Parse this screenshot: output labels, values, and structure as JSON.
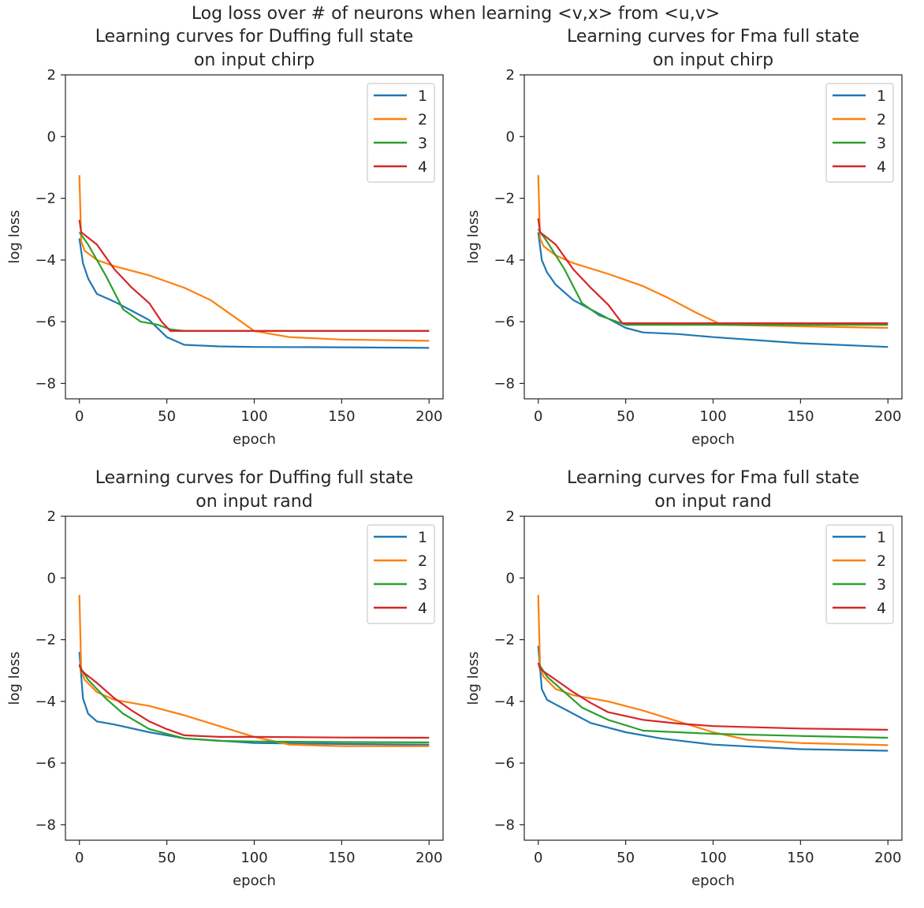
{
  "figure_title": "Log loss over # of neurons when learning <v,x> from <u,v>",
  "colors": {
    "1": "#1f77b4",
    "2": "#ff7f0e",
    "3": "#2ca02c",
    "4": "#d62728"
  },
  "chart_data": [
    {
      "type": "line",
      "title": "Learning curves for Duffing full state\non input chirp",
      "xlabel": "epoch",
      "ylabel": "log loss",
      "xlim": [
        -8,
        208
      ],
      "ylim": [
        -8.5,
        2
      ],
      "xticks": [
        0,
        50,
        100,
        150,
        200
      ],
      "yticks": [
        2,
        0,
        -2,
        -4,
        -6,
        -8
      ],
      "legend": "top-right",
      "grid": false,
      "series": [
        {
          "name": "1",
          "points": [
            [
              0,
              -3.3
            ],
            [
              2,
              -4.1
            ],
            [
              5,
              -4.6
            ],
            [
              10,
              -5.1
            ],
            [
              20,
              -5.35
            ],
            [
              30,
              -5.65
            ],
            [
              40,
              -5.95
            ],
            [
              50,
              -6.5
            ],
            [
              60,
              -6.75
            ],
            [
              80,
              -6.8
            ],
            [
              100,
              -6.82
            ],
            [
              150,
              -6.83
            ],
            [
              200,
              -6.85
            ]
          ]
        },
        {
          "name": "2",
          "points": [
            [
              0,
              -1.25
            ],
            [
              1,
              -3.4
            ],
            [
              3,
              -3.7
            ],
            [
              10,
              -4.0
            ],
            [
              20,
              -4.2
            ],
            [
              40,
              -4.5
            ],
            [
              60,
              -4.9
            ],
            [
              75,
              -5.3
            ],
            [
              90,
              -5.9
            ],
            [
              100,
              -6.3
            ],
            [
              120,
              -6.5
            ],
            [
              150,
              -6.58
            ],
            [
              200,
              -6.62
            ]
          ]
        },
        {
          "name": "3",
          "points": [
            [
              0,
              -3.1
            ],
            [
              5,
              -3.5
            ],
            [
              15,
              -4.5
            ],
            [
              25,
              -5.6
            ],
            [
              35,
              -6.0
            ],
            [
              45,
              -6.1
            ],
            [
              52,
              -6.25
            ],
            [
              60,
              -6.3
            ],
            [
              100,
              -6.3
            ],
            [
              150,
              -6.3
            ],
            [
              200,
              -6.3
            ]
          ]
        },
        {
          "name": "4",
          "points": [
            [
              0,
              -2.7
            ],
            [
              1,
              -3.1
            ],
            [
              10,
              -3.5
            ],
            [
              20,
              -4.3
            ],
            [
              30,
              -4.9
            ],
            [
              40,
              -5.4
            ],
            [
              47,
              -6.0
            ],
            [
              52,
              -6.3
            ],
            [
              60,
              -6.3
            ],
            [
              100,
              -6.3
            ],
            [
              150,
              -6.3
            ],
            [
              200,
              -6.3
            ]
          ]
        }
      ]
    },
    {
      "type": "line",
      "title": "Learning curves for Fma full state\non input chirp",
      "xlabel": "epoch",
      "ylabel": "log loss",
      "xlim": [
        -8,
        208
      ],
      "ylim": [
        -8.5,
        2
      ],
      "xticks": [
        0,
        50,
        100,
        150,
        200
      ],
      "yticks": [
        2,
        0,
        -2,
        -4,
        -6,
        -8
      ],
      "legend": "top-right",
      "grid": false,
      "series": [
        {
          "name": "1",
          "points": [
            [
              0,
              -3.1
            ],
            [
              2,
              -4.0
            ],
            [
              5,
              -4.4
            ],
            [
              10,
              -4.8
            ],
            [
              20,
              -5.3
            ],
            [
              30,
              -5.6
            ],
            [
              40,
              -5.9
            ],
            [
              50,
              -6.2
            ],
            [
              60,
              -6.35
            ],
            [
              80,
              -6.4
            ],
            [
              100,
              -6.5
            ],
            [
              150,
              -6.7
            ],
            [
              200,
              -6.82
            ]
          ]
        },
        {
          "name": "2",
          "points": [
            [
              0,
              -1.25
            ],
            [
              1,
              -3.3
            ],
            [
              3,
              -3.55
            ],
            [
              10,
              -3.85
            ],
            [
              20,
              -4.1
            ],
            [
              40,
              -4.45
            ],
            [
              60,
              -4.85
            ],
            [
              75,
              -5.25
            ],
            [
              90,
              -5.7
            ],
            [
              105,
              -6.1
            ],
            [
              150,
              -6.15
            ],
            [
              200,
              -6.2
            ]
          ]
        },
        {
          "name": "3",
          "points": [
            [
              0,
              -3.0
            ],
            [
              5,
              -3.4
            ],
            [
              15,
              -4.3
            ],
            [
              25,
              -5.4
            ],
            [
              35,
              -5.8
            ],
            [
              45,
              -6.0
            ],
            [
              50,
              -6.1
            ],
            [
              60,
              -6.1
            ],
            [
              100,
              -6.1
            ],
            [
              150,
              -6.1
            ],
            [
              200,
              -6.1
            ]
          ]
        },
        {
          "name": "4",
          "points": [
            [
              0,
              -2.65
            ],
            [
              1,
              -3.1
            ],
            [
              10,
              -3.5
            ],
            [
              20,
              -4.3
            ],
            [
              30,
              -4.9
            ],
            [
              40,
              -5.45
            ],
            [
              48,
              -6.05
            ],
            [
              60,
              -6.05
            ],
            [
              100,
              -6.05
            ],
            [
              150,
              -6.05
            ],
            [
              200,
              -6.05
            ]
          ]
        }
      ]
    },
    {
      "type": "line",
      "title": "Learning curves for Duffing full state\non input rand",
      "xlabel": "epoch",
      "ylabel": "log loss",
      "xlim": [
        -8,
        208
      ],
      "ylim": [
        -8.5,
        2
      ],
      "xticks": [
        0,
        50,
        100,
        150,
        200
      ],
      "yticks": [
        2,
        0,
        -2,
        -4,
        -6,
        -8
      ],
      "legend": "top-right",
      "grid": false,
      "series": [
        {
          "name": "1",
          "points": [
            [
              0,
              -2.4
            ],
            [
              2,
              -3.9
            ],
            [
              5,
              -4.4
            ],
            [
              10,
              -4.65
            ],
            [
              20,
              -4.75
            ],
            [
              40,
              -5.0
            ],
            [
              60,
              -5.2
            ],
            [
              100,
              -5.35
            ],
            [
              150,
              -5.38
            ],
            [
              200,
              -5.4
            ]
          ]
        },
        {
          "name": "2",
          "points": [
            [
              0,
              -0.55
            ],
            [
              1,
              -3.0
            ],
            [
              3,
              -3.3
            ],
            [
              10,
              -3.7
            ],
            [
              20,
              -3.95
            ],
            [
              40,
              -4.15
            ],
            [
              60,
              -4.45
            ],
            [
              80,
              -4.8
            ],
            [
              100,
              -5.15
            ],
            [
              120,
              -5.4
            ],
            [
              150,
              -5.45
            ],
            [
              200,
              -5.45
            ]
          ]
        },
        {
          "name": "3",
          "points": [
            [
              0,
              -2.85
            ],
            [
              5,
              -3.3
            ],
            [
              15,
              -3.9
            ],
            [
              25,
              -4.4
            ],
            [
              40,
              -4.9
            ],
            [
              60,
              -5.2
            ],
            [
              80,
              -5.28
            ],
            [
              100,
              -5.3
            ],
            [
              150,
              -5.32
            ],
            [
              200,
              -5.33
            ]
          ]
        },
        {
          "name": "4",
          "points": [
            [
              0,
              -2.8
            ],
            [
              1,
              -3.0
            ],
            [
              10,
              -3.4
            ],
            [
              20,
              -3.9
            ],
            [
              30,
              -4.3
            ],
            [
              40,
              -4.65
            ],
            [
              50,
              -4.9
            ],
            [
              60,
              -5.1
            ],
            [
              80,
              -5.15
            ],
            [
              100,
              -5.15
            ],
            [
              150,
              -5.17
            ],
            [
              200,
              -5.18
            ]
          ]
        }
      ]
    },
    {
      "type": "line",
      "title": "Learning curves for Fma full state\non input rand",
      "xlabel": "epoch",
      "ylabel": "log loss",
      "xlim": [
        -8,
        208
      ],
      "ylim": [
        -8.5,
        2
      ],
      "xticks": [
        0,
        50,
        100,
        150,
        200
      ],
      "yticks": [
        2,
        0,
        -2,
        -4,
        -6,
        -8
      ],
      "legend": "top-right",
      "grid": false,
      "series": [
        {
          "name": "1",
          "points": [
            [
              0,
              -2.2
            ],
            [
              2,
              -3.6
            ],
            [
              5,
              -3.95
            ],
            [
              10,
              -4.1
            ],
            [
              20,
              -4.4
            ],
            [
              30,
              -4.7
            ],
            [
              50,
              -5.0
            ],
            [
              70,
              -5.2
            ],
            [
              100,
              -5.4
            ],
            [
              150,
              -5.55
            ],
            [
              200,
              -5.6
            ]
          ]
        },
        {
          "name": "2",
          "points": [
            [
              0,
              -0.55
            ],
            [
              1,
              -2.9
            ],
            [
              3,
              -3.2
            ],
            [
              10,
              -3.6
            ],
            [
              20,
              -3.8
            ],
            [
              40,
              -4.0
            ],
            [
              60,
              -4.3
            ],
            [
              80,
              -4.65
            ],
            [
              100,
              -5.0
            ],
            [
              120,
              -5.25
            ],
            [
              150,
              -5.35
            ],
            [
              200,
              -5.42
            ]
          ]
        },
        {
          "name": "3",
          "points": [
            [
              0,
              -2.75
            ],
            [
              5,
              -3.2
            ],
            [
              15,
              -3.7
            ],
            [
              25,
              -4.2
            ],
            [
              40,
              -4.6
            ],
            [
              60,
              -4.95
            ],
            [
              80,
              -5.0
            ],
            [
              100,
              -5.05
            ],
            [
              150,
              -5.12
            ],
            [
              200,
              -5.18
            ]
          ]
        },
        {
          "name": "4",
          "points": [
            [
              0,
              -2.75
            ],
            [
              1,
              -2.95
            ],
            [
              10,
              -3.3
            ],
            [
              20,
              -3.7
            ],
            [
              30,
              -4.05
            ],
            [
              40,
              -4.35
            ],
            [
              60,
              -4.6
            ],
            [
              80,
              -4.72
            ],
            [
              100,
              -4.8
            ],
            [
              150,
              -4.88
            ],
            [
              200,
              -4.92
            ]
          ]
        }
      ]
    }
  ]
}
